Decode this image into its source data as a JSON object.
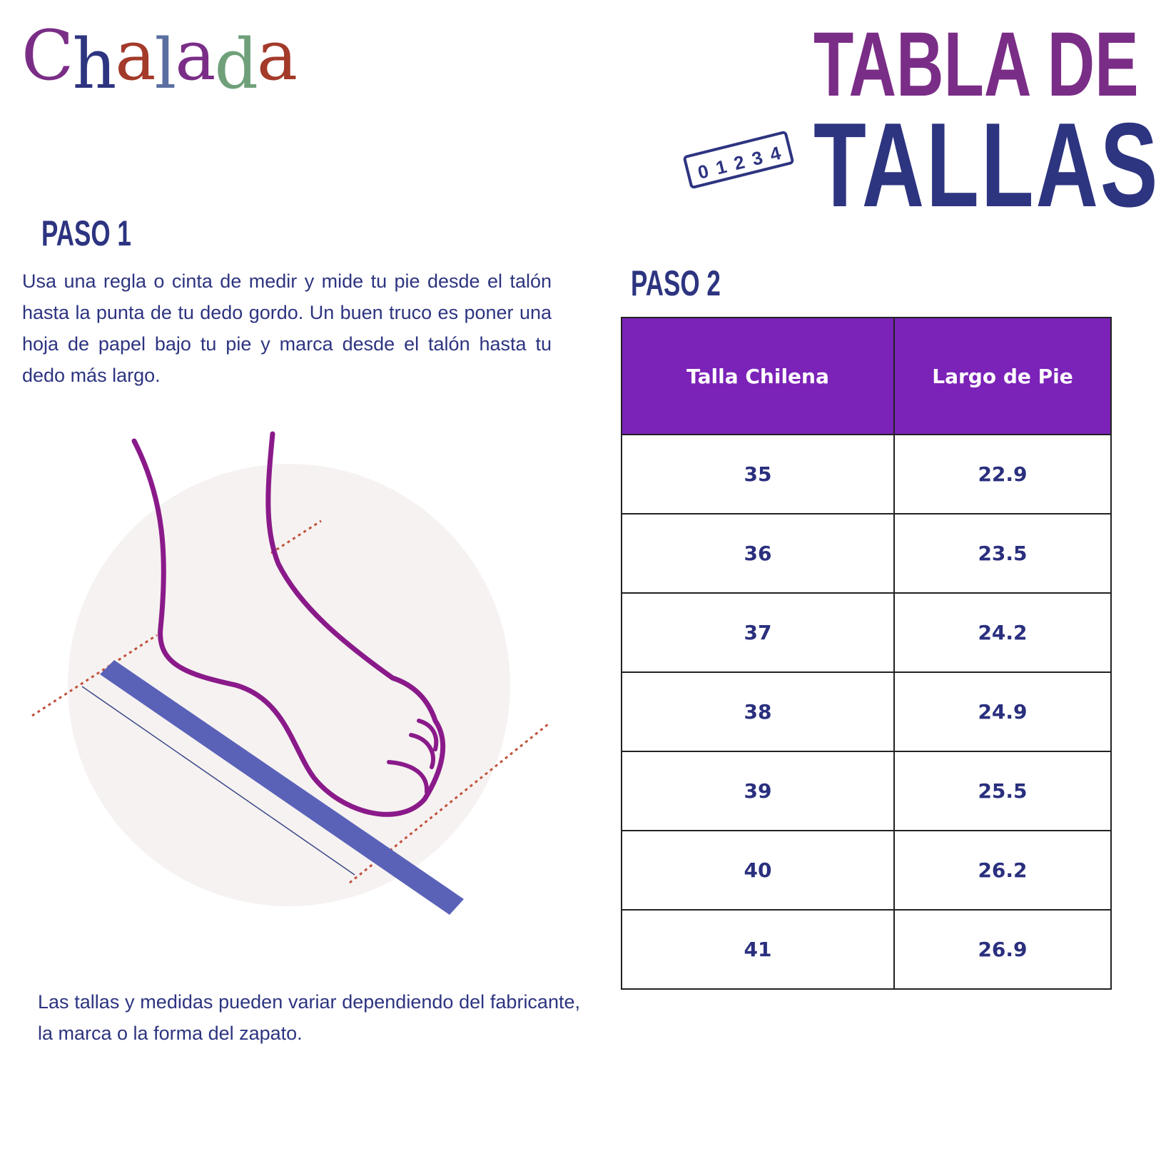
{
  "logo": {
    "text": "Chalada",
    "letters": [
      "C",
      "h",
      "a",
      "l",
      "a",
      "d",
      "a"
    ],
    "colors": [
      "#7a2d86",
      "#2d3480",
      "#a33a2a",
      "#5a6fa0",
      "#7a2d86",
      "#6fa07a",
      "#a33a2a"
    ]
  },
  "title": {
    "line1": "TABLA DE",
    "line2": "TALLAS",
    "ruler_digits": [
      "0",
      "1",
      "2",
      "3",
      "4"
    ]
  },
  "step1": {
    "heading": "PASO 1",
    "text": "Usa una regla o cinta de medir y mide tu pie desde el talón hasta la punta de tu dedo gordo. Un buen truco es poner una hoja de papel bajo tu pie y marca desde el talón hasta tu dedo más largo."
  },
  "step2": {
    "heading": "PASO 2"
  },
  "table": {
    "headers": [
      "Talla Chilena",
      "Largo de Pie"
    ],
    "rows": [
      [
        "35",
        "22.9"
      ],
      [
        "36",
        "23.5"
      ],
      [
        "37",
        "24.2"
      ],
      [
        "38",
        "24.9"
      ],
      [
        "39",
        "25.5"
      ],
      [
        "40",
        "26.2"
      ],
      [
        "41",
        "26.9"
      ]
    ]
  },
  "note": "Las tallas y medidas pueden variar dependiendo del fabricante, la marca o la forma del zapato.",
  "colors": {
    "purple": "#7b22b8",
    "navy": "#2d3480",
    "foot": "#8a1a8a",
    "ruler": "#5a62b8"
  }
}
